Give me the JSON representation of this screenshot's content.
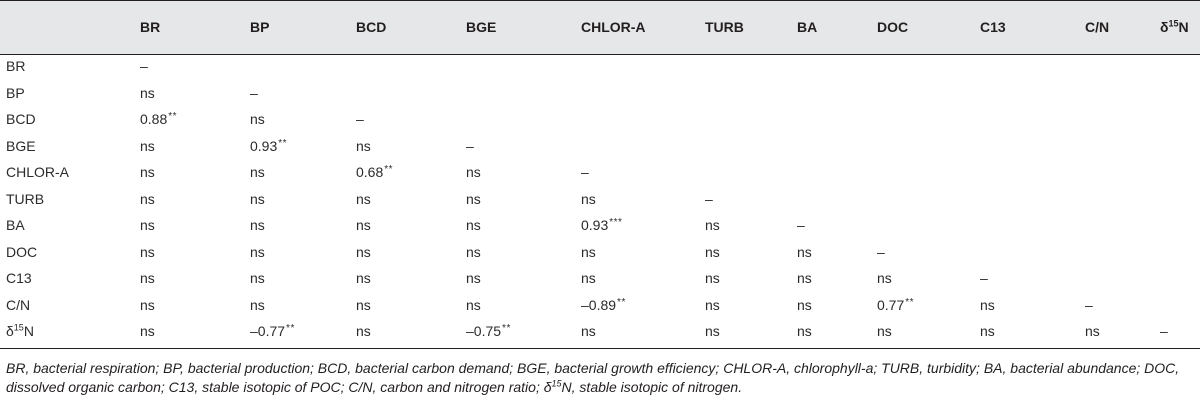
{
  "table": {
    "columns": [
      "BR",
      "BP",
      "BCD",
      "BGE",
      "CHLOR-A",
      "TURB",
      "BA",
      "DOC",
      "C13",
      "C/N",
      "δ15N"
    ],
    "rows": [
      {
        "label": "BR",
        "cells": [
          "–"
        ]
      },
      {
        "label": "BP",
        "cells": [
          "ns",
          "–"
        ]
      },
      {
        "label": "BCD",
        "cells": [
          "0.88**",
          "ns",
          "–"
        ]
      },
      {
        "label": "BGE",
        "cells": [
          "ns",
          "0.93**",
          "ns",
          "–"
        ]
      },
      {
        "label": "CHLOR-A",
        "cells": [
          "ns",
          "ns",
          "0.68**",
          "ns",
          "–"
        ]
      },
      {
        "label": "TURB",
        "cells": [
          "ns",
          "ns",
          "ns",
          "ns",
          "ns",
          "–"
        ]
      },
      {
        "label": "BA",
        "cells": [
          "ns",
          "ns",
          "ns",
          "ns",
          "0.93***",
          "ns",
          "–"
        ]
      },
      {
        "label": "DOC",
        "cells": [
          "ns",
          "ns",
          "ns",
          "ns",
          "ns",
          "ns",
          "ns",
          "–"
        ]
      },
      {
        "label": "C13",
        "cells": [
          "ns",
          "ns",
          "ns",
          "ns",
          "ns",
          "ns",
          "ns",
          "ns",
          "–"
        ]
      },
      {
        "label": "C/N",
        "cells": [
          "ns",
          "ns",
          "ns",
          "ns",
          "–0.89**",
          "ns",
          "ns",
          "0.77**",
          "ns",
          "–"
        ]
      },
      {
        "label": "δ15N",
        "cells": [
          "ns",
          "–0.77**",
          "ns",
          "–0.75**",
          "ns",
          "ns",
          "ns",
          "ns",
          "ns",
          "ns",
          "–"
        ]
      }
    ]
  },
  "footnote": "BR, bacterial respiration; BP, bacterial production; BCD, bacterial carbon demand; BGE, bacterial growth efficiency; CHLOR-A, chlorophyll-a; TURB, turbidity; BA, bacterial abundance; DOC, dissolved organic carbon; C13, stable isotopic of POC; C/N, carbon and nitrogen ratio; δ15N, stable isotopic of nitrogen.",
  "colors": {
    "header_band": "#e6e7e8",
    "text": "#2b2b2b",
    "rule": "#231f20"
  }
}
